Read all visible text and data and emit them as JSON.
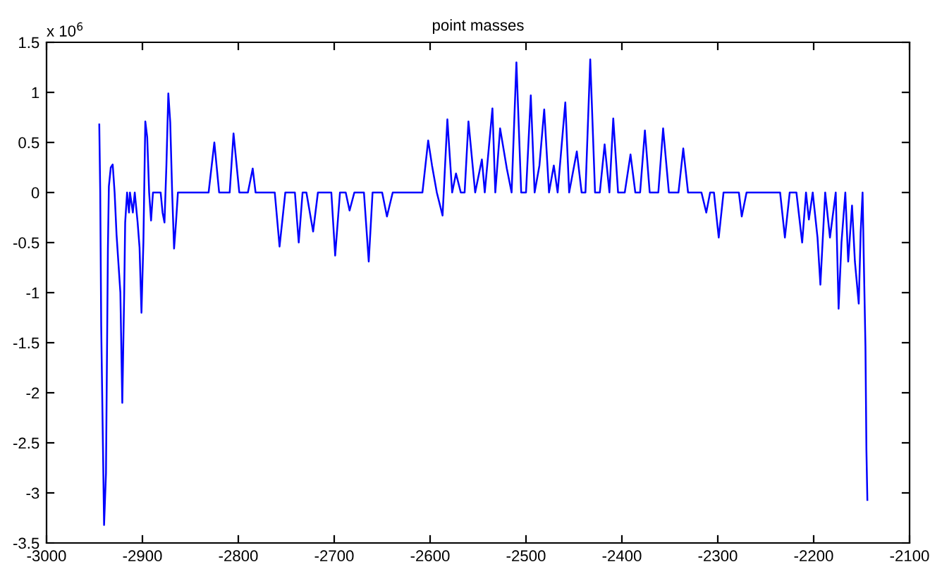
{
  "chart_data": {
    "type": "line",
    "title": "point masses",
    "annotations": [
      "x 10$^{6}$"
    ],
    "x": [
      -2945,
      -2944,
      -2943,
      -2941,
      -2940,
      -2938,
      -2937,
      -2936,
      -2935,
      -2933,
      -2931,
      -2929,
      -2927,
      -2923,
      -2921,
      -2919,
      -2918,
      -2916,
      -2914,
      -2913,
      -2910,
      -2908,
      -2905,
      -2903,
      -2901,
      -2899,
      -2897,
      -2895,
      -2893,
      -2891,
      -2889,
      -2886,
      -2881,
      -2879,
      -2877,
      -2875,
      -2873,
      -2871,
      -2869,
      -2867,
      -2865,
      -2863,
      -2831,
      -2825,
      -2820,
      -2809,
      -2805,
      -2799,
      -2790,
      -2785,
      -2782,
      -2762,
      -2757,
      -2751,
      -2741,
      -2737,
      -2733,
      -2729,
      -2722,
      -2717,
      -2703,
      -2699,
      -2694,
      -2688,
      -2684,
      -2679,
      -2669,
      -2664,
      -2660,
      -2650,
      -2645,
      -2639,
      -2608,
      -2602,
      -2598,
      -2593,
      -2587,
      -2582,
      -2577,
      -2573,
      -2568,
      -2564,
      -2560,
      -2553,
      -2546,
      -2543,
      -2535,
      -2532,
      -2527,
      -2520,
      -2515,
      -2510,
      -2505,
      -2500,
      -2495,
      -2491,
      -2486,
      -2481,
      -2476,
      -2471,
      -2467,
      -2459,
      -2455,
      -2447,
      -2442,
      -2438,
      -2433,
      -2428,
      -2423,
      -2418,
      -2413,
      -2409,
      -2404,
      -2397,
      -2391,
      -2386,
      -2381,
      -2376,
      -2371,
      -2362,
      -2357,
      -2351,
      -2341,
      -2336,
      -2331,
      -2317,
      -2312,
      -2308,
      -2304,
      -2299,
      -2294,
      -2278,
      -2275,
      -2270,
      -2235,
      -2230,
      -2225,
      -2218,
      -2212,
      -2208,
      -2205,
      -2201,
      -2196,
      -2193,
      -2188,
      -2183,
      -2177,
      -2174,
      -2171,
      -2167,
      -2164,
      -2160,
      -2157,
      -2153,
      -2151,
      -2149,
      -2148,
      -2146,
      -2145,
      -2144
    ],
    "series": [
      {
        "color": "#0000ff",
        "values": [
          0.68,
          0,
          -1.33,
          -2.65,
          -3.32,
          -2.8,
          -1.66,
          -0.56,
          0.06,
          0.25,
          0.28,
          0,
          -0.42,
          -1.0,
          -2.1,
          -1.0,
          -0.3,
          0,
          -0.2,
          0,
          -0.2,
          0,
          -0.3,
          -0.55,
          -1.2,
          -0.5,
          0.71,
          0.55,
          0,
          -0.28,
          0,
          0,
          0,
          -0.2,
          -0.3,
          0.27,
          0.99,
          0.7,
          0,
          -0.56,
          -0.3,
          0,
          0,
          0.5,
          0,
          0,
          0.59,
          0,
          0,
          0.24,
          0,
          0,
          -0.54,
          0,
          0,
          -0.5,
          0,
          0,
          -0.39,
          0,
          0,
          -0.63,
          0,
          0,
          -0.18,
          0,
          0,
          -0.69,
          0,
          0,
          -0.24,
          0,
          0,
          0.52,
          0.27,
          0,
          -0.23,
          0.73,
          0,
          0.19,
          0,
          0,
          0.71,
          0,
          0.33,
          0,
          0.84,
          0,
          0.64,
          0.24,
          0,
          1.3,
          0,
          0,
          0.97,
          0,
          0.27,
          0.83,
          0,
          0.27,
          0,
          0.9,
          0,
          0.41,
          0,
          0,
          1.33,
          0,
          0,
          0.48,
          0,
          0.74,
          0,
          0,
          0.38,
          0,
          0,
          0.62,
          0,
          0,
          0.64,
          0,
          0,
          0.44,
          0,
          0,
          -0.2,
          0,
          0,
          -0.45,
          0,
          0,
          -0.24,
          0,
          0,
          -0.45,
          0,
          0,
          -0.5,
          0,
          -0.27,
          0,
          -0.45,
          -0.92,
          0,
          -0.45,
          0,
          -1.16,
          -0.5,
          0,
          -0.69,
          -0.13,
          -0.69,
          -1.11,
          -0.4,
          0,
          -0.53,
          -1.54,
          -2.57,
          -3.07
        ]
      }
    ],
    "xlim": [
      -3000,
      -2100
    ],
    "xticks": [
      -3000,
      -2900,
      -2800,
      -2700,
      -2600,
      -2500,
      -2400,
      -2300,
      -2200,
      -2100
    ],
    "ylim": [
      -3.5,
      1.5
    ],
    "yticks": [
      -3.5,
      -3,
      -2.5,
      -2,
      -1.5,
      -1,
      -0.5,
      0,
      0.5,
      1,
      1.5
    ],
    "grid": false,
    "legend": false,
    "marker": "none",
    "line_style": "solid"
  }
}
